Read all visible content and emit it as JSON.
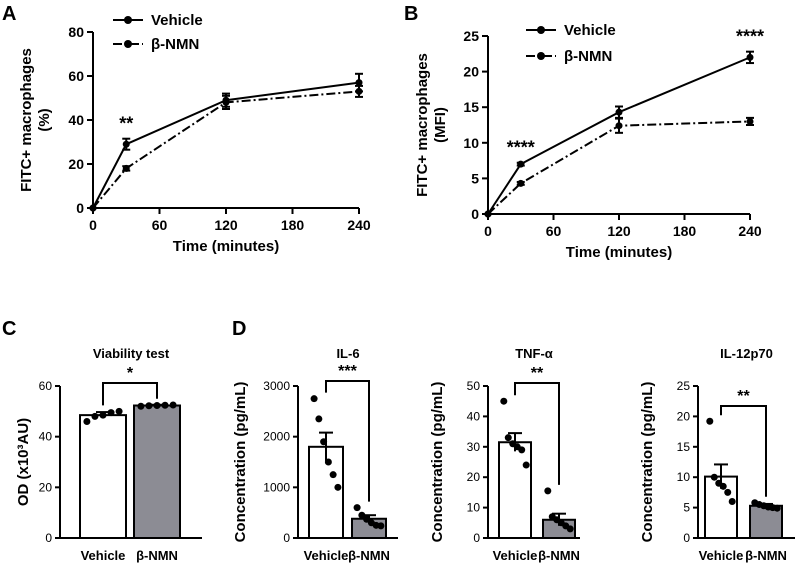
{
  "panels": {
    "A": "A",
    "B": "B",
    "C": "C",
    "D": "D"
  },
  "colors": {
    "axis": "#000000",
    "bar_vehicle": "#ffffff",
    "bar_nmn": "#8c8c94",
    "line": "#000000"
  },
  "chart_data": [
    {
      "id": "A",
      "type": "line",
      "title": "",
      "xlabel": "Time (minutes)",
      "ylabel": "FITC+ macrophages",
      "ylabel2": "(%)",
      "x": [
        0,
        30,
        120,
        240
      ],
      "xlim": [
        0,
        240
      ],
      "ylim": [
        0,
        80
      ],
      "xticks": [
        0,
        60,
        120,
        180,
        240
      ],
      "yticks": [
        0,
        20,
        40,
        60,
        80
      ],
      "series": [
        {
          "name": "Vehicle",
          "style": "solid",
          "values": [
            0,
            29,
            49,
            57
          ],
          "err": [
            0,
            2.5,
            3,
            4
          ]
        },
        {
          "name": "β-NMN",
          "style": "dashdot",
          "values": [
            0,
            18,
            48,
            53
          ],
          "err": [
            0,
            1,
            3,
            2.5
          ]
        }
      ],
      "annotations": [
        {
          "x": 30,
          "text": "**"
        }
      ]
    },
    {
      "id": "B",
      "type": "line",
      "title": "",
      "xlabel": "Time (minutes)",
      "ylabel": "FITC+ macrophages",
      "ylabel2": "(MFI)",
      "x": [
        0,
        30,
        120,
        240
      ],
      "xlim": [
        0,
        240
      ],
      "ylim": [
        0,
        25
      ],
      "xticks": [
        0,
        60,
        120,
        180,
        240
      ],
      "yticks": [
        0,
        5,
        10,
        15,
        20,
        25
      ],
      "series": [
        {
          "name": "Vehicle",
          "style": "solid",
          "values": [
            0,
            7,
            14.3,
            22
          ],
          "err": [
            0,
            0.2,
            0.8,
            0.8
          ]
        },
        {
          "name": "β-NMN",
          "style": "dashdot",
          "values": [
            0,
            4.3,
            12.4,
            13
          ],
          "err": [
            0,
            0.2,
            1,
            0.5
          ]
        }
      ],
      "annotations": [
        {
          "x": 30,
          "text": "****"
        },
        {
          "x": 240,
          "text": "****"
        }
      ]
    },
    {
      "id": "C",
      "type": "bar",
      "title": "Viability test",
      "xlabel": "",
      "ylabel": "OD (x10³AU)",
      "categories": [
        "Vehicle",
        "β-NMN"
      ],
      "ylim": [
        0,
        60
      ],
      "yticks": [
        0,
        20,
        40,
        60
      ],
      "values": [
        48.5,
        52.3
      ],
      "err": [
        1.2,
        0.3
      ],
      "points": [
        [
          46,
          48,
          48.5,
          49.5,
          50
        ],
        [
          52,
          52.2,
          52.3,
          52.4,
          52.5
        ]
      ],
      "significance": "*"
    },
    {
      "id": "D1",
      "type": "bar",
      "title": "IL-6",
      "xlabel": "",
      "ylabel": "Concentration (pg/mL)",
      "categories": [
        "Vehicle",
        "β-NMN"
      ],
      "ylim": [
        0,
        3000
      ],
      "yticks": [
        0,
        1000,
        2000,
        3000
      ],
      "values": [
        1800,
        380
      ],
      "err": [
        280,
        70
      ],
      "points": [
        [
          2750,
          2350,
          1900,
          1500,
          1250,
          1000
        ],
        [
          600,
          450,
          370,
          300,
          250,
          240
        ]
      ],
      "significance": "***"
    },
    {
      "id": "D2",
      "type": "bar",
      "title": "TNF-α",
      "xlabel": "",
      "ylabel": "Concentration (pg/mL)",
      "categories": [
        "Vehicle",
        "β-NMN"
      ],
      "ylim": [
        0,
        50
      ],
      "yticks": [
        0,
        10,
        20,
        30,
        40,
        50
      ],
      "values": [
        31.5,
        6
      ],
      "err": [
        3,
        2
      ],
      "points": [
        [
          45,
          33,
          31,
          30,
          29,
          24
        ],
        [
          15.5,
          7,
          6,
          5,
          4,
          3
        ]
      ],
      "significance": "**"
    },
    {
      "id": "D3",
      "type": "bar",
      "title": "IL-12p70",
      "xlabel": "",
      "ylabel": "Concentration (pg/mL)",
      "categories": [
        "Vehicle",
        "β-NMN"
      ],
      "ylim": [
        0,
        25
      ],
      "yticks": [
        0,
        5,
        10,
        15,
        20,
        25
      ],
      "values": [
        10.1,
        5.3
      ],
      "err": [
        2,
        0.3
      ],
      "points": [
        [
          19.2,
          10,
          9,
          8.5,
          7.5,
          6
        ],
        [
          5.8,
          5.5,
          5.3,
          5.1,
          5,
          4.9
        ]
      ],
      "significance": "**"
    }
  ]
}
